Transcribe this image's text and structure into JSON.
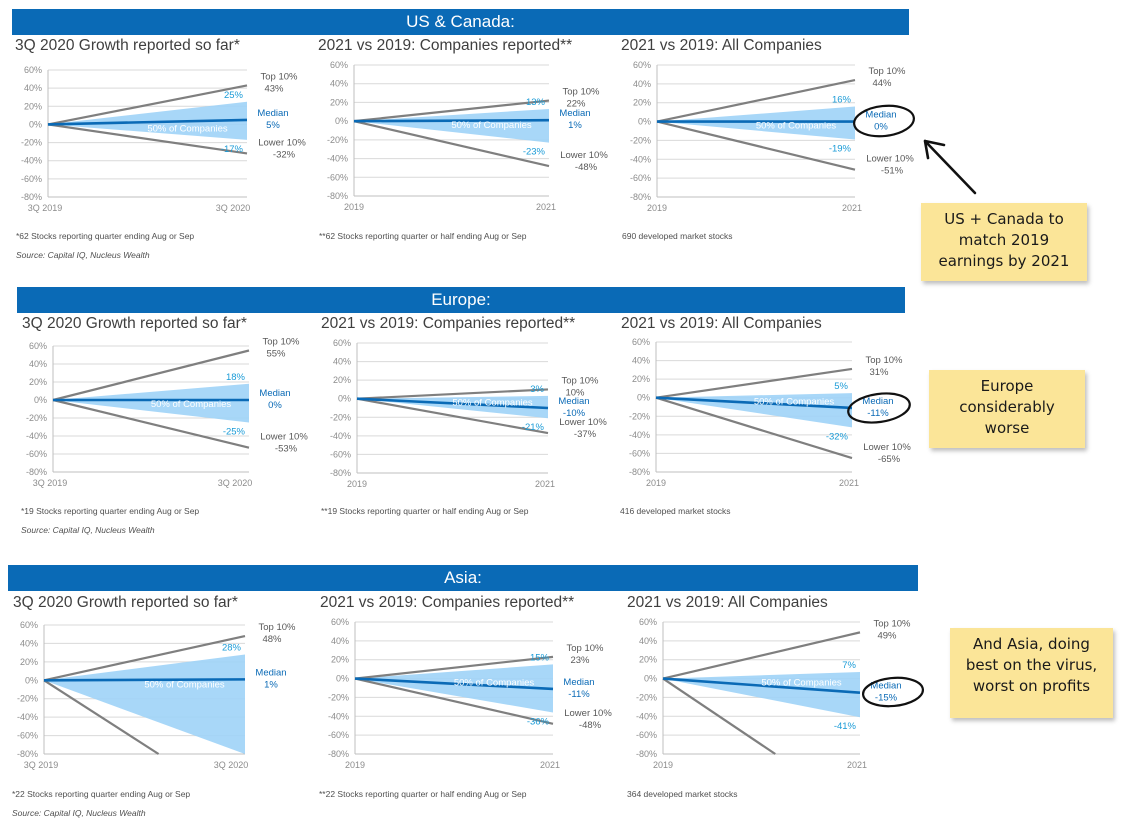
{
  "sections": [
    {
      "title": "US & Canada:",
      "footnotes": [
        "*62 Stocks reporting quarter ending Aug or Sep",
        "**62 Stocks reporting quarter or half ending Aug or Sep",
        "690 developed market stocks"
      ],
      "source": "Source: Capital IQ, Nucleus Wealth"
    },
    {
      "title": "Europe:",
      "footnotes": [
        "*19 Stocks reporting quarter ending Aug or Sep",
        "**19 Stocks reporting quarter or half ending Aug or Sep",
        "416 developed market stocks"
      ],
      "source": "Source: Capital IQ, Nucleus Wealth"
    },
    {
      "title": "Asia:",
      "footnotes": [
        "*22 Stocks reporting quarter ending Aug or Sep",
        "**22 Stocks reporting quarter or half ending Aug or Sep",
        "364 developed market stocks"
      ],
      "source": "Source: Capital IQ, Nucleus Wealth"
    }
  ],
  "notes": [
    "US + Canada to match 2019 earnings by 2021",
    "Europe considerably worse",
    "And Asia, doing best on the virus, worst on profits"
  ],
  "colors": {
    "banner": "#0a6ab6",
    "band": "#9ed3f7",
    "median": "#0a6ab6",
    "extreme": "#7f7f7f",
    "quartile_label": "#1a9bd7",
    "note": "#fbe598"
  },
  "chart_data": [
    {
      "type": "line",
      "title": "3Q 2020 Growth reported so far*",
      "x": [
        "3Q 2019",
        "3Q 2020"
      ],
      "ylim": [
        -80,
        60
      ],
      "yticks": [
        "60%",
        "40%",
        "20%",
        "0%",
        "-20%",
        "-40%",
        "-60%",
        "-80%"
      ],
      "top10": 43,
      "q75": 25,
      "median": 5,
      "q25": -17,
      "bottom10": -32,
      "labels": {
        "top10": [
          "Top 10%",
          "43%"
        ],
        "q75": "25%",
        "median": [
          "Median",
          "5%"
        ],
        "q25": "-17%",
        "bottom10": [
          "Lower 10%",
          "-32%"
        ],
        "band": "50% of Companies"
      }
    },
    {
      "type": "line",
      "title": "2021 vs 2019: Companies reported**",
      "x": [
        "2019",
        "2021"
      ],
      "ylim": [
        -80,
        60
      ],
      "yticks": [
        "60%",
        "40%",
        "20%",
        "0%",
        "-20%",
        "-40%",
        "-60%",
        "-80%"
      ],
      "top10": 22,
      "q75": 13,
      "median": 1,
      "q25": -23,
      "bottom10": -48,
      "labels": {
        "top10": [
          "Top 10%",
          "22%"
        ],
        "q75": "13%",
        "median": [
          "Median",
          "1%"
        ],
        "q25": "-23%",
        "bottom10": [
          "Lower 10%",
          "-48%"
        ],
        "band": "50% of Companies"
      }
    },
    {
      "type": "line",
      "title": "2021 vs 2019: All Companies",
      "x": [
        "2019",
        "2021"
      ],
      "ylim": [
        -80,
        60
      ],
      "yticks": [
        "60%",
        "40%",
        "20%",
        "0%",
        "-20%",
        "-40%",
        "-60%",
        "-80%"
      ],
      "top10": 44,
      "q75": 16,
      "median": 0,
      "q25": -19,
      "bottom10": -51,
      "labels": {
        "top10": [
          "Top 10%",
          "44%"
        ],
        "q75": "16%",
        "median": [
          "Median",
          "0%"
        ],
        "q25": "-19%",
        "bottom10": [
          "Lower 10%",
          "-51%"
        ],
        "band": "50% of Companies"
      }
    },
    {
      "type": "line",
      "title": "3Q 2020 Growth reported so far*",
      "x": [
        "3Q 2019",
        "3Q 2020"
      ],
      "ylim": [
        -80,
        60
      ],
      "yticks": [
        "60%",
        "40%",
        "20%",
        "0%",
        "-20%",
        "-40%",
        "-60%",
        "-80%"
      ],
      "top10": 55,
      "q75": 18,
      "median": 0,
      "q25": -25,
      "bottom10": -53,
      "labels": {
        "top10": [
          "Top 10%",
          "55%"
        ],
        "q75": "18%",
        "median": [
          "Median",
          "0%"
        ],
        "q25": "-25%",
        "bottom10": [
          "Lower 10%",
          "-53%"
        ],
        "band": "50% of Companies"
      }
    },
    {
      "type": "line",
      "title": "2021 vs 2019: Companies reported**",
      "x": [
        "2019",
        "2021"
      ],
      "ylim": [
        -80,
        60
      ],
      "yticks": [
        "60%",
        "40%",
        "20%",
        "0%",
        "-20%",
        "-40%",
        "-60%",
        "-80%"
      ],
      "top10": 10,
      "q75": 3,
      "median": -10,
      "q25": -21,
      "bottom10": -37,
      "labels": {
        "top10": [
          "Top 10%",
          "10%"
        ],
        "q75": "3%",
        "median": [
          "Median",
          "-10%"
        ],
        "q25": "-21%",
        "bottom10": [
          "Lower 10%",
          "-37%"
        ],
        "band": "50% of Companies"
      }
    },
    {
      "type": "line",
      "title": "2021 vs 2019: All Companies",
      "x": [
        "2019",
        "2021"
      ],
      "ylim": [
        -80,
        60
      ],
      "yticks": [
        "60%",
        "40%",
        "20%",
        "0%",
        "-20%",
        "-40%",
        "-60%",
        "-80%"
      ],
      "top10": 31,
      "q75": 5,
      "median": -11,
      "q25": -32,
      "bottom10": -65,
      "labels": {
        "top10": [
          "Top 10%",
          "31%"
        ],
        "q75": "5%",
        "median": [
          "Median",
          "-11%"
        ],
        "q25": "-32%",
        "bottom10": [
          "Lower 10%",
          "-65%"
        ],
        "band": "50% of Companies"
      }
    },
    {
      "type": "line",
      "title": "3Q 2020 Growth reported so far*",
      "x": [
        "3Q 2019",
        "3Q 2020"
      ],
      "ylim": [
        -80,
        60
      ],
      "yticks": [
        "60%",
        "40%",
        "20%",
        "0%",
        "-20%",
        "-40%",
        "-60%",
        "-80%"
      ],
      "top10": 48,
      "q75": 28,
      "median": 1,
      "q25": -80,
      "bottom10": -80,
      "labels": {
        "top10": [
          "Top 10%",
          "48%"
        ],
        "q75": "28%",
        "median": [
          "Median",
          "1%"
        ],
        "q25": "",
        "bottom10": [
          "",
          ""
        ],
        "band": "50% of Companies"
      }
    },
    {
      "type": "line",
      "title": "2021 vs 2019: Companies reported**",
      "x": [
        "2019",
        "2021"
      ],
      "ylim": [
        -80,
        60
      ],
      "yticks": [
        "60%",
        "40%",
        "20%",
        "0%",
        "-20%",
        "-40%",
        "-60%",
        "-80%"
      ],
      "top10": 23,
      "q75": 15,
      "median": -11,
      "q25": -36,
      "bottom10": -48,
      "labels": {
        "top10": [
          "Top 10%",
          "23%"
        ],
        "q75": "15%",
        "median": [
          "Median",
          "-11%"
        ],
        "q25": "-36%",
        "bottom10": [
          "Lower 10%",
          "-48%"
        ],
        "band": "50% of Companies"
      }
    },
    {
      "type": "line",
      "title": "2021 vs 2019: All Companies",
      "x": [
        "2019",
        "2021"
      ],
      "ylim": [
        -80,
        60
      ],
      "yticks": [
        "60%",
        "40%",
        "20%",
        "0%",
        "-20%",
        "-40%",
        "-60%",
        "-80%"
      ],
      "top10": 49,
      "q75": 7,
      "median": -15,
      "q25": -41,
      "bottom10": -80,
      "labels": {
        "top10": [
          "Top 10%",
          "49%"
        ],
        "q75": "7%",
        "median": [
          "Median",
          "-15%"
        ],
        "q25": "-41%",
        "bottom10": [
          "",
          ""
        ],
        "band": "50% of Companies"
      }
    }
  ]
}
